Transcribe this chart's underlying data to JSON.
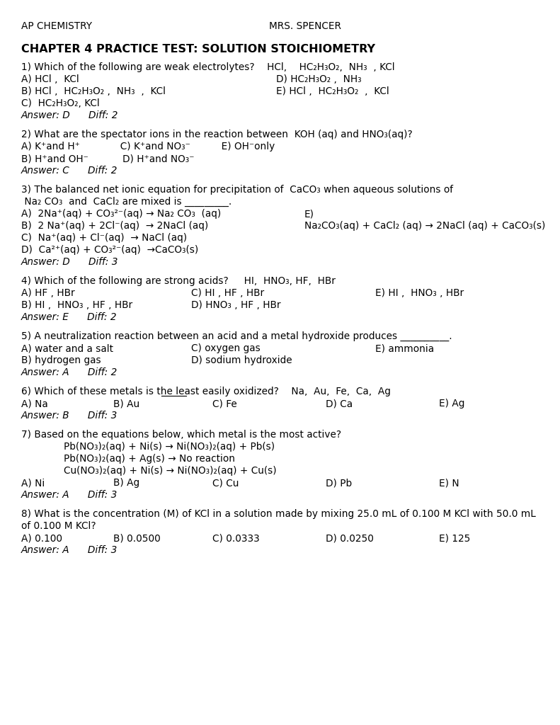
{
  "bg_color": "#ffffff",
  "figw": 7.91,
  "figh": 10.24,
  "dpi": 100,
  "lm": 30,
  "header_left": "AP CHEMISTRY",
  "header_right": "MRS. SPENCER",
  "title": "CHAPTER 4 PRACTICE TEST: SOLUTION STOICHIOMETRY"
}
